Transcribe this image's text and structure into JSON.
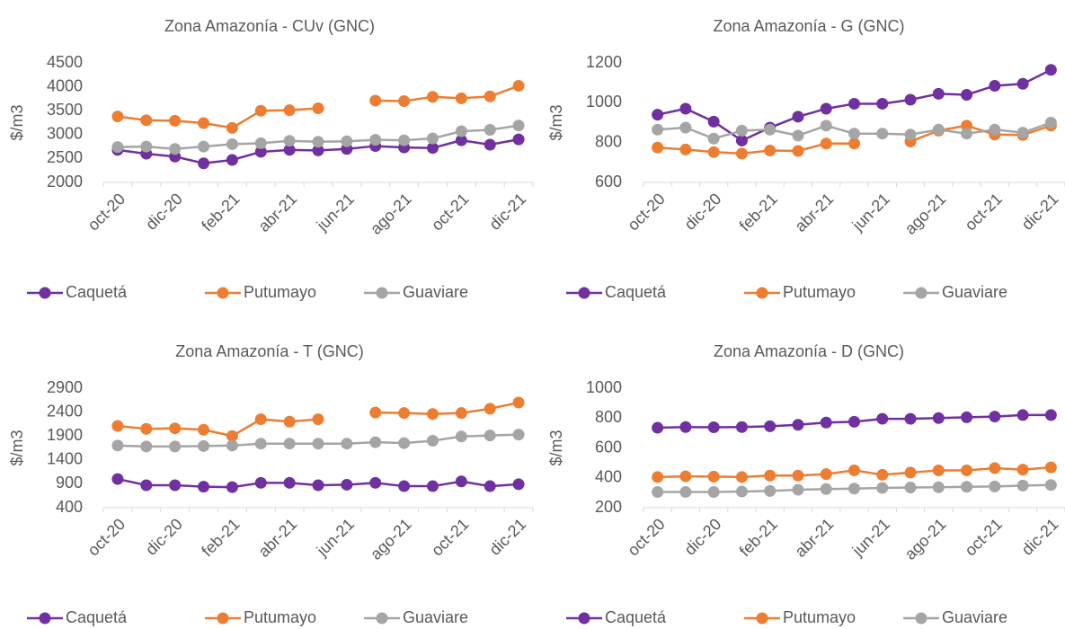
{
  "chart_data": [
    {
      "type": "line",
      "title": "Zona Amazonía  - CUv (GNC)",
      "ylabel": "$/m3",
      "categories": [
        "oct-20",
        null,
        "dic-20",
        null,
        "feb-21",
        null,
        "abr-21",
        null,
        "jun-21",
        null,
        "ago-21",
        null,
        "oct-21",
        null,
        "dic-21"
      ],
      "ylim": [
        2000,
        4500
      ],
      "yticks": [
        2000,
        2500,
        3000,
        3500,
        4000,
        4500
      ],
      "series": [
        {
          "name": "Caquetá",
          "color": "#7030a0",
          "values": [
            2680,
            2600,
            2540,
            2400,
            2470,
            2640,
            2680,
            2670,
            2700,
            2760,
            2730,
            2720,
            2880,
            2790,
            2900
          ]
        },
        {
          "name": "Putumayo",
          "color": "#ed7d31",
          "values": [
            3380,
            3300,
            3290,
            3240,
            3140,
            3500,
            3510,
            3550,
            null,
            3710,
            3700,
            3790,
            3760,
            3800,
            4020
          ]
        },
        {
          "name": "Guaviare",
          "color": "#a5a5a5",
          "values": [
            2740,
            2750,
            2700,
            2750,
            2800,
            2820,
            2870,
            2850,
            2860,
            2890,
            2880,
            2920,
            3070,
            3100,
            3190
          ]
        }
      ]
    },
    {
      "type": "line",
      "title": "Zona Amazonía - G (GNC)",
      "ylabel": "$/m3",
      "categories": [
        "oct-20",
        null,
        "dic-20",
        null,
        "feb-21",
        null,
        "abr-21",
        null,
        "jun-21",
        null,
        "ago-21",
        null,
        "oct-21",
        null,
        "dic-21"
      ],
      "ylim": [
        600,
        1200
      ],
      "yticks": [
        600,
        800,
        1000,
        1200
      ],
      "series": [
        {
          "name": "Caquetá",
          "color": "#7030a0",
          "values": [
            940,
            970,
            905,
            810,
            875,
            930,
            970,
            995,
            995,
            1015,
            1045,
            1040,
            1085,
            1095,
            1165
          ]
        },
        {
          "name": "Putumayo",
          "color": "#ed7d31",
          "values": [
            775,
            765,
            752,
            745,
            760,
            758,
            795,
            795,
            null,
            805,
            860,
            885,
            840,
            838,
            885
          ]
        },
        {
          "name": "Guaviare",
          "color": "#a5a5a5",
          "values": [
            865,
            875,
            820,
            860,
            865,
            835,
            885,
            845,
            845,
            840,
            865,
            845,
            865,
            850,
            900
          ]
        }
      ]
    },
    {
      "type": "line",
      "title": "Zona Amazonía - T (GNC)",
      "ylabel": "$/m3",
      "categories": [
        "oct-20",
        null,
        "dic-20",
        null,
        "feb-21",
        null,
        "abr-21",
        null,
        "jun-21",
        null,
        "ago-21",
        null,
        "oct-21",
        null,
        "dic-21"
      ],
      "ylim": [
        400,
        2900
      ],
      "yticks": [
        400,
        900,
        1400,
        1900,
        2400,
        2900
      ],
      "series": [
        {
          "name": "Caquetá",
          "color": "#7030a0",
          "values": [
            1000,
            870,
            870,
            840,
            830,
            920,
            920,
            870,
            880,
            920,
            850,
            850,
            950,
            850,
            890
          ]
        },
        {
          "name": "Putumayo",
          "color": "#ed7d31",
          "values": [
            2110,
            2050,
            2060,
            2030,
            1900,
            2250,
            2200,
            2250,
            null,
            2390,
            2380,
            2360,
            2380,
            2470,
            2600
          ]
        },
        {
          "name": "Guaviare",
          "color": "#a5a5a5",
          "values": [
            1700,
            1680,
            1680,
            1690,
            1700,
            1740,
            1740,
            1740,
            1740,
            1770,
            1750,
            1800,
            1890,
            1910,
            1930
          ]
        }
      ]
    },
    {
      "type": "line",
      "title": "Zona Amazonía - D (GNC)",
      "ylabel": "$/m3",
      "categories": [
        "oct-20",
        null,
        "dic-20",
        null,
        "feb-21",
        null,
        "abr-21",
        null,
        "jun-21",
        null,
        "ago-21",
        null,
        "oct-21",
        null,
        "dic-21"
      ],
      "ylim": [
        200,
        1000
      ],
      "yticks": [
        200,
        400,
        600,
        800,
        1000
      ],
      "series": [
        {
          "name": "Caquetá",
          "color": "#7030a0",
          "values": [
            735,
            740,
            738,
            740,
            745,
            755,
            770,
            775,
            795,
            795,
            800,
            805,
            810,
            820,
            820
          ]
        },
        {
          "name": "Putumayo",
          "color": "#ed7d31",
          "values": [
            405,
            410,
            408,
            405,
            415,
            415,
            425,
            450,
            420,
            435,
            450,
            450,
            465,
            455,
            470
          ]
        },
        {
          "name": "Guaviare",
          "color": "#a5a5a5",
          "values": [
            305,
            305,
            305,
            308,
            312,
            320,
            325,
            328,
            332,
            335,
            337,
            340,
            342,
            348,
            352
          ]
        }
      ]
    }
  ]
}
